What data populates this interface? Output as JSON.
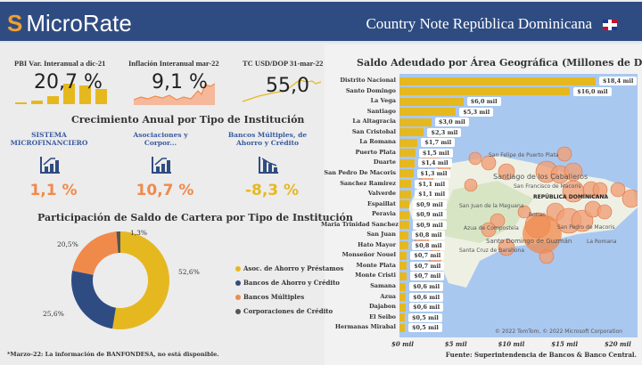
{
  "header": {
    "brand": "MicroRate",
    "title": "Country Note República Dominicana"
  },
  "kpis": [
    {
      "label": "PBI Var. Interanual a dic-21",
      "value": "20,7 %"
    },
    {
      "label": "Inflación Interanual mar-22",
      "value": "9,1 %"
    },
    {
      "label": "TC USD/DOP 31-mar-22",
      "value": "55,0"
    }
  ],
  "growth": {
    "title": "Crecimiento Anual por Tipo de Institución",
    "items": [
      {
        "name": "SISTEMA MICROFINANCIERO",
        "value": "1,1 %",
        "color": "#f08a4b",
        "icon": "chart-up-icon"
      },
      {
        "name": "Asociaciones y Corpor...",
        "value": "10,7 %",
        "color": "#f08a4b",
        "icon": "chart-up-icon"
      },
      {
        "name": "Bancos Múltiples, de Ahorro y Crédito",
        "value": "-8,3 %",
        "color": "#e6b820",
        "icon": "chart-down-icon"
      }
    ]
  },
  "donut": {
    "title": "Participación de Saldo de Cartera por Tipo de Institución",
    "chart_data": {
      "type": "pie",
      "categories": [
        "Asoc. de Ahorro y Préstamos",
        "Bancos de Ahorro y Crédito",
        "Bancos Múltiples",
        "Corporaciones de Crédito"
      ],
      "values": [
        52.6,
        25.6,
        20.5,
        1.3
      ],
      "labels": [
        "52,6%",
        "25,6%",
        "20,5%",
        "1,3%"
      ],
      "colors": [
        "#e6b820",
        "#2f4c82",
        "#f08a4b",
        "#555555"
      ],
      "legend": "right"
    }
  },
  "footnote": "*Marzo-22: La información de BANFONDESA, no está disponible.",
  "geo": {
    "title": "Saldo Adeudado por Área Geográfica (Millones de DOP)",
    "chart_data": {
      "type": "bar",
      "orientation": "horizontal",
      "categories": [
        "Distrito Nacional",
        "Santo Domingo",
        "La Vega",
        "Santiago",
        "La Altagracia",
        "San Cristobal",
        "La Romana",
        "Puerto Plata",
        "Duarte",
        "San Pedro De Macoris",
        "Sanchez Ramirez",
        "Valverde",
        "Espaillat",
        "Peravia",
        "Maria Trinidad Sanchez",
        "San Juan",
        "Hato Mayor",
        "Monseñor Nouel",
        "Monte Plata",
        "Monte Cristi",
        "Samana",
        "Azua",
        "Dajabon",
        "El Seibo",
        "Hermanas Mirabal"
      ],
      "values": [
        18.4,
        16.0,
        6.0,
        5.3,
        3.0,
        2.3,
        1.7,
        1.5,
        1.4,
        1.3,
        1.1,
        1.1,
        0.9,
        0.9,
        0.9,
        0.8,
        0.8,
        0.7,
        0.7,
        0.7,
        0.6,
        0.6,
        0.6,
        0.5,
        0.5
      ],
      "labels": [
        "$18,4 mil",
        "$16,0 mil",
        "$6,0 mil",
        "$5,3 mil",
        "$3,0 mil",
        "$2,3 mil",
        "$1,7 mil",
        "$1,5 mil",
        "$1,4 mil",
        "$1,3 mil",
        "$1,1 mil",
        "$1,1 mil",
        "$0,9 mil",
        "$0,9 mil",
        "$0,9 mil",
        "$0,8 mil",
        "$0,8 mil",
        "$0,7 mil",
        "$0,7 mil",
        "$0,7 mil",
        "$0,6 mil",
        "$0,6 mil",
        "$0,6 mil",
        "$0,5 mil",
        "$0,5 mil"
      ],
      "xticks": [
        "$0 mil",
        "$5 mil",
        "$10 mil",
        "$15 mil",
        "$20 mil"
      ],
      "xlim": [
        0,
        20
      ],
      "color": "#e6b820"
    },
    "map_labels": [
      "San Felipe de Puerto Plata",
      "Santiago de los Caballeros",
      "San Francisco de Macoris",
      "REPÚBLICA DOMINICANA",
      "San Juan de la Maguana",
      "Bonao",
      "Azua de Compostela",
      "Santo Domingo de Guzmán",
      "San Pedro de Macoris",
      "La Romana",
      "Santa Cruz de Barahona"
    ],
    "attribution": "© 2022 TomTom, © 2022 Microsoft Corporation",
    "source": "Fuente: Superintendencia de Bancos & Banco Central."
  }
}
